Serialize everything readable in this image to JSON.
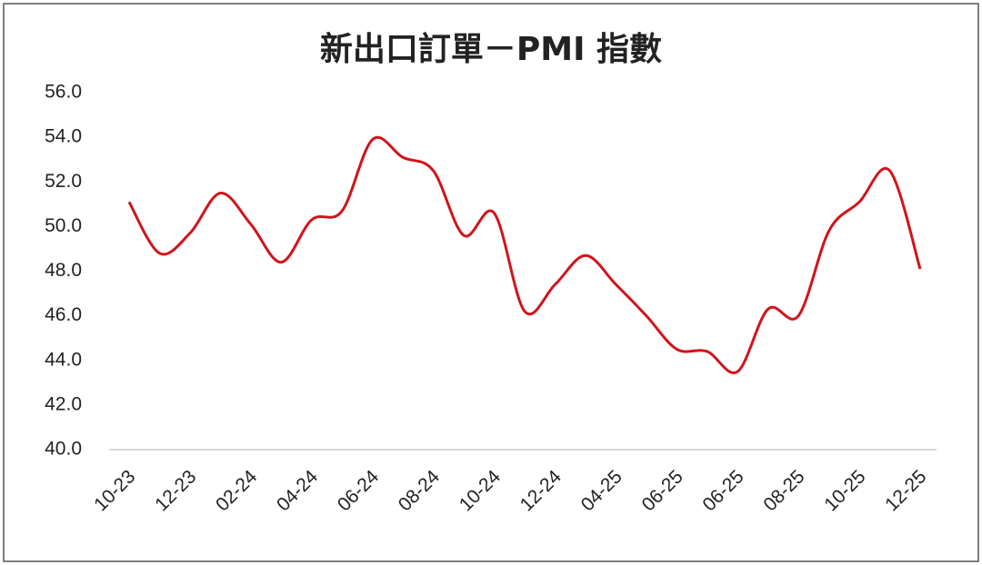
{
  "chart_data": {
    "type": "line",
    "title": "新出口訂單－PMI 指數",
    "categories": [
      "10-23",
      null,
      "12-23",
      null,
      "02-24",
      null,
      "04-24",
      null,
      "06-24",
      null,
      "08-24",
      null,
      "10-24",
      null,
      "12-24",
      null,
      "04-25",
      null,
      "06-25",
      null,
      "06-25",
      null,
      "08-25",
      null,
      "10-25",
      null,
      "12-25"
    ],
    "series": [
      {
        "color": "#d0141b",
        "values": [
          51.1,
          48.8,
          49.7,
          51.5,
          50.1,
          48.4,
          50.3,
          50.7,
          53.9,
          53.1,
          52.5,
          49.6,
          50.6,
          46.2,
          47.4,
          48.7,
          47.4,
          46.0,
          44.5,
          44.4,
          43.5,
          46.3,
          46.0,
          49.8,
          51.1,
          52.5,
          48.1
        ]
      }
    ],
    "ylim": [
      40,
      56
    ],
    "yticks": [
      {
        "value": 40,
        "label": "40.0"
      },
      {
        "value": 42,
        "label": "42.0"
      },
      {
        "value": 44,
        "label": "44.0"
      },
      {
        "value": 46,
        "label": "46.0"
      },
      {
        "value": 48,
        "label": "48.0"
      },
      {
        "value": 50,
        "label": "50.0"
      },
      {
        "value": 52,
        "label": "52.0"
      },
      {
        "value": 54,
        "label": "54.0"
      },
      {
        "value": 56,
        "label": "56.0"
      }
    ],
    "grid": false
  }
}
